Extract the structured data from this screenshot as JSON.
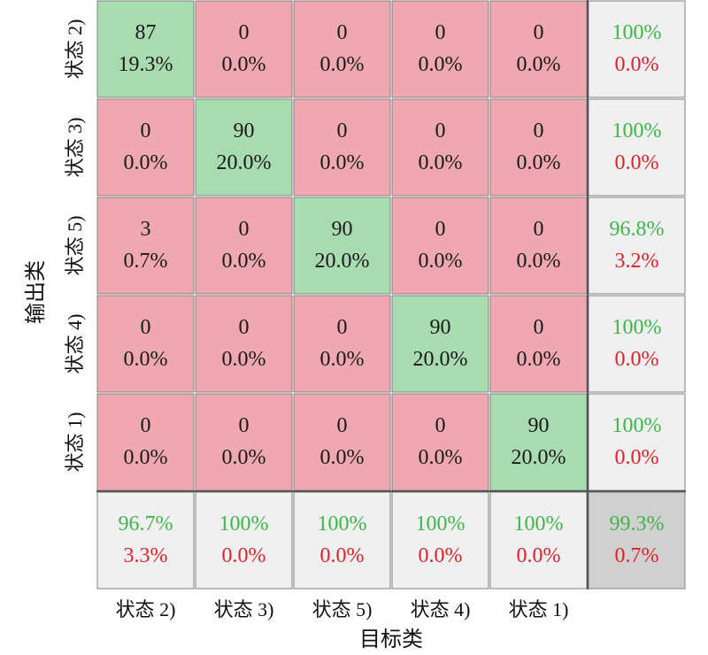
{
  "chart_data": {
    "type": "heatmap",
    "subtype": "confusion-matrix",
    "xlabel": "目标类",
    "ylabel": "输出类",
    "output_classes": [
      "状态 2)",
      "状态 3)",
      "状态 5)",
      "状态 4)",
      "状态 1)"
    ],
    "target_classes": [
      "状态 2)",
      "状态 3)",
      "状态 5)",
      "状态 4)",
      "状态 1)"
    ],
    "counts": [
      [
        87,
        0,
        0,
        0,
        0
      ],
      [
        0,
        90,
        0,
        0,
        0
      ],
      [
        3,
        0,
        90,
        0,
        0
      ],
      [
        0,
        0,
        0,
        90,
        0
      ],
      [
        0,
        0,
        0,
        0,
        90
      ]
    ],
    "percents": [
      [
        "19.3%",
        "0.0%",
        "0.0%",
        "0.0%",
        "0.0%"
      ],
      [
        "0.0%",
        "20.0%",
        "0.0%",
        "0.0%",
        "0.0%"
      ],
      [
        "0.7%",
        "0.0%",
        "20.0%",
        "0.0%",
        "0.0%"
      ],
      [
        "0.0%",
        "0.0%",
        "0.0%",
        "20.0%",
        "0.0%"
      ],
      [
        "0.0%",
        "0.0%",
        "0.0%",
        "0.0%",
        "20.0%"
      ]
    ],
    "row_summary": [
      {
        "correct": "100%",
        "error": "0.0%"
      },
      {
        "correct": "100%",
        "error": "0.0%"
      },
      {
        "correct": "96.8%",
        "error": "3.2%"
      },
      {
        "correct": "100%",
        "error": "0.0%"
      },
      {
        "correct": "100%",
        "error": "0.0%"
      }
    ],
    "col_summary": [
      {
        "correct": "96.7%",
        "error": "3.3%"
      },
      {
        "correct": "100%",
        "error": "0.0%"
      },
      {
        "correct": "100%",
        "error": "0.0%"
      },
      {
        "correct": "100%",
        "error": "0.0%"
      },
      {
        "correct": "100%",
        "error": "0.0%"
      }
    ],
    "overall": {
      "correct": "99.3%",
      "error": "0.7%"
    },
    "colors": {
      "diagonal": "#a8dcb0",
      "off_diagonal": "#f0a8b0",
      "summary": "#f0f0f0",
      "overall": "#d0d0d0",
      "correct_text": "#3db54a",
      "error_text": "#e0202a",
      "grid": "#808080"
    }
  }
}
